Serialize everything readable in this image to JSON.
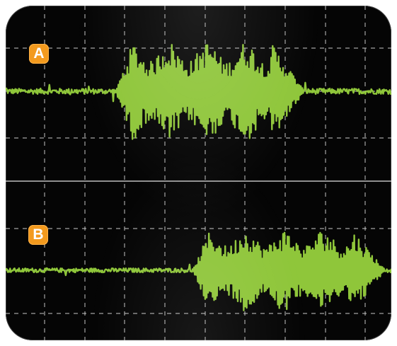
{
  "chart_data": [
    {
      "type": "line",
      "channel_label": "A",
      "description_hidden": true,
      "x_range": [
        0,
        10
      ],
      "y_range": [
        -4,
        4
      ],
      "burst": {
        "start": 3.0,
        "end": 7.5,
        "peak_amplitude": 2.7
      },
      "baseline_noise": 0.15,
      "trace_color": "#8fc63a"
    },
    {
      "type": "line",
      "channel_label": "B",
      "x_range": [
        0,
        10
      ],
      "y_range": [
        -4,
        4
      ],
      "burst": {
        "start": 5.0,
        "end": 9.6,
        "peak_amplitude": 2.3
      },
      "baseline_noise": 0.12,
      "trace_color": "#8fc63a"
    }
  ],
  "colors": {
    "screen": "#050505",
    "grid": "#bfbfbf",
    "badge": "#f39a1e",
    "trace": "#8fc63a"
  }
}
